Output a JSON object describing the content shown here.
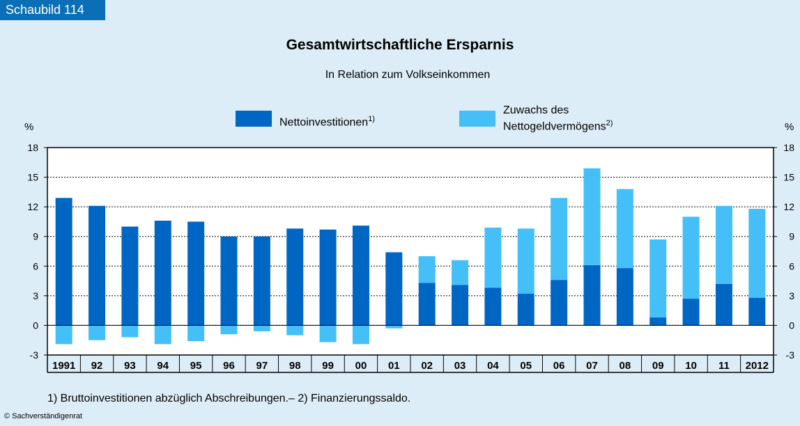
{
  "badge": "Schaubild 114",
  "unit_left": "%",
  "unit_right": "%",
  "legend": {
    "item1": "Nettoinvestitionen",
    "item1_sup": "1)",
    "item2_line1": "Zuwachs des",
    "item2_line2": "Nettogeldvermögens",
    "item2_sup": "2)"
  },
  "footnote": "1) Bruttoinvestitionen abzüglich Abschreibungen.– 2) Finanzierungssaldo.",
  "copyright": "© Sachverständigenrat",
  "colors": {
    "nettoinvestitionen": "#0066c4",
    "nettogeldvermoegen": "#44bff7",
    "background": "#ddedf7",
    "badge": "#0a6fb6"
  },
  "chart_data": {
    "type": "bar",
    "stacked": true,
    "title": "Gesamtwirtschaftliche Ersparnis",
    "subtitle": "In Relation zum Volkseinkommen",
    "ylim": [
      -3,
      18
    ],
    "yticks": [
      -3,
      0,
      3,
      6,
      9,
      12,
      15,
      18
    ],
    "grid": true,
    "legend_position": "top-center",
    "categories": [
      "1991",
      "92",
      "93",
      "94",
      "95",
      "96",
      "97",
      "98",
      "99",
      "00",
      "01",
      "02",
      "03",
      "04",
      "05",
      "06",
      "07",
      "08",
      "09",
      "10",
      "11",
      "2012"
    ],
    "series": [
      {
        "name": "Nettoinvestitionen",
        "values": [
          12.9,
          12.1,
          10.0,
          10.6,
          10.5,
          9.0,
          9.0,
          9.8,
          9.7,
          10.1,
          7.4,
          4.3,
          4.1,
          3.8,
          3.2,
          4.6,
          6.1,
          5.8,
          0.8,
          2.7,
          4.2,
          2.8
        ]
      },
      {
        "name": "Zuwachs des Nettogeldvermögens",
        "values": [
          -1.9,
          -1.5,
          -1.2,
          -1.9,
          -1.6,
          -0.9,
          -0.6,
          -1.0,
          -1.7,
          -1.9,
          -0.3,
          2.7,
          2.5,
          6.1,
          6.6,
          8.3,
          9.8,
          8.0,
          7.9,
          8.3,
          7.9,
          9.0
        ]
      }
    ]
  }
}
